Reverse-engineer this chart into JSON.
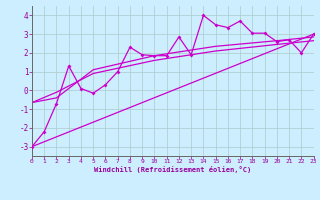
{
  "xlabel": "Windchill (Refroidissement éolien,°C)",
  "bg_color": "#cceeff",
  "grid_color": "#aacccc",
  "line_color": "#cc00cc",
  "xlim": [
    0,
    23
  ],
  "ylim": [
    -3.5,
    4.5
  ],
  "xticks": [
    0,
    1,
    2,
    3,
    4,
    5,
    6,
    7,
    8,
    9,
    10,
    11,
    12,
    13,
    14,
    15,
    16,
    17,
    18,
    19,
    20,
    21,
    22,
    23
  ],
  "yticks": [
    -3,
    -2,
    -1,
    0,
    1,
    2,
    3,
    4
  ],
  "scatter_x": [
    0,
    1,
    2,
    3,
    4,
    5,
    6,
    7,
    8,
    9,
    10,
    11,
    12,
    13,
    14,
    15,
    16,
    17,
    18,
    19,
    20,
    21,
    22,
    23
  ],
  "scatter_y": [
    -3.0,
    -2.2,
    -0.7,
    1.3,
    0.1,
    -0.15,
    0.3,
    1.0,
    2.3,
    1.9,
    1.85,
    1.85,
    2.85,
    1.9,
    4.0,
    3.5,
    3.35,
    3.7,
    3.05,
    3.05,
    2.6,
    2.7,
    2.0,
    3.0
  ],
  "line1_x": [
    0,
    23
  ],
  "line1_y": [
    -3.0,
    3.0
  ],
  "line2_x": [
    0,
    2,
    5,
    10,
    15,
    20,
    23
  ],
  "line2_y": [
    -0.65,
    -0.4,
    1.1,
    1.85,
    2.35,
    2.65,
    2.85
  ],
  "line3_x": [
    0,
    2,
    5,
    10,
    15,
    20,
    23
  ],
  "line3_y": [
    -0.65,
    -0.1,
    0.9,
    1.6,
    2.1,
    2.45,
    2.65
  ]
}
